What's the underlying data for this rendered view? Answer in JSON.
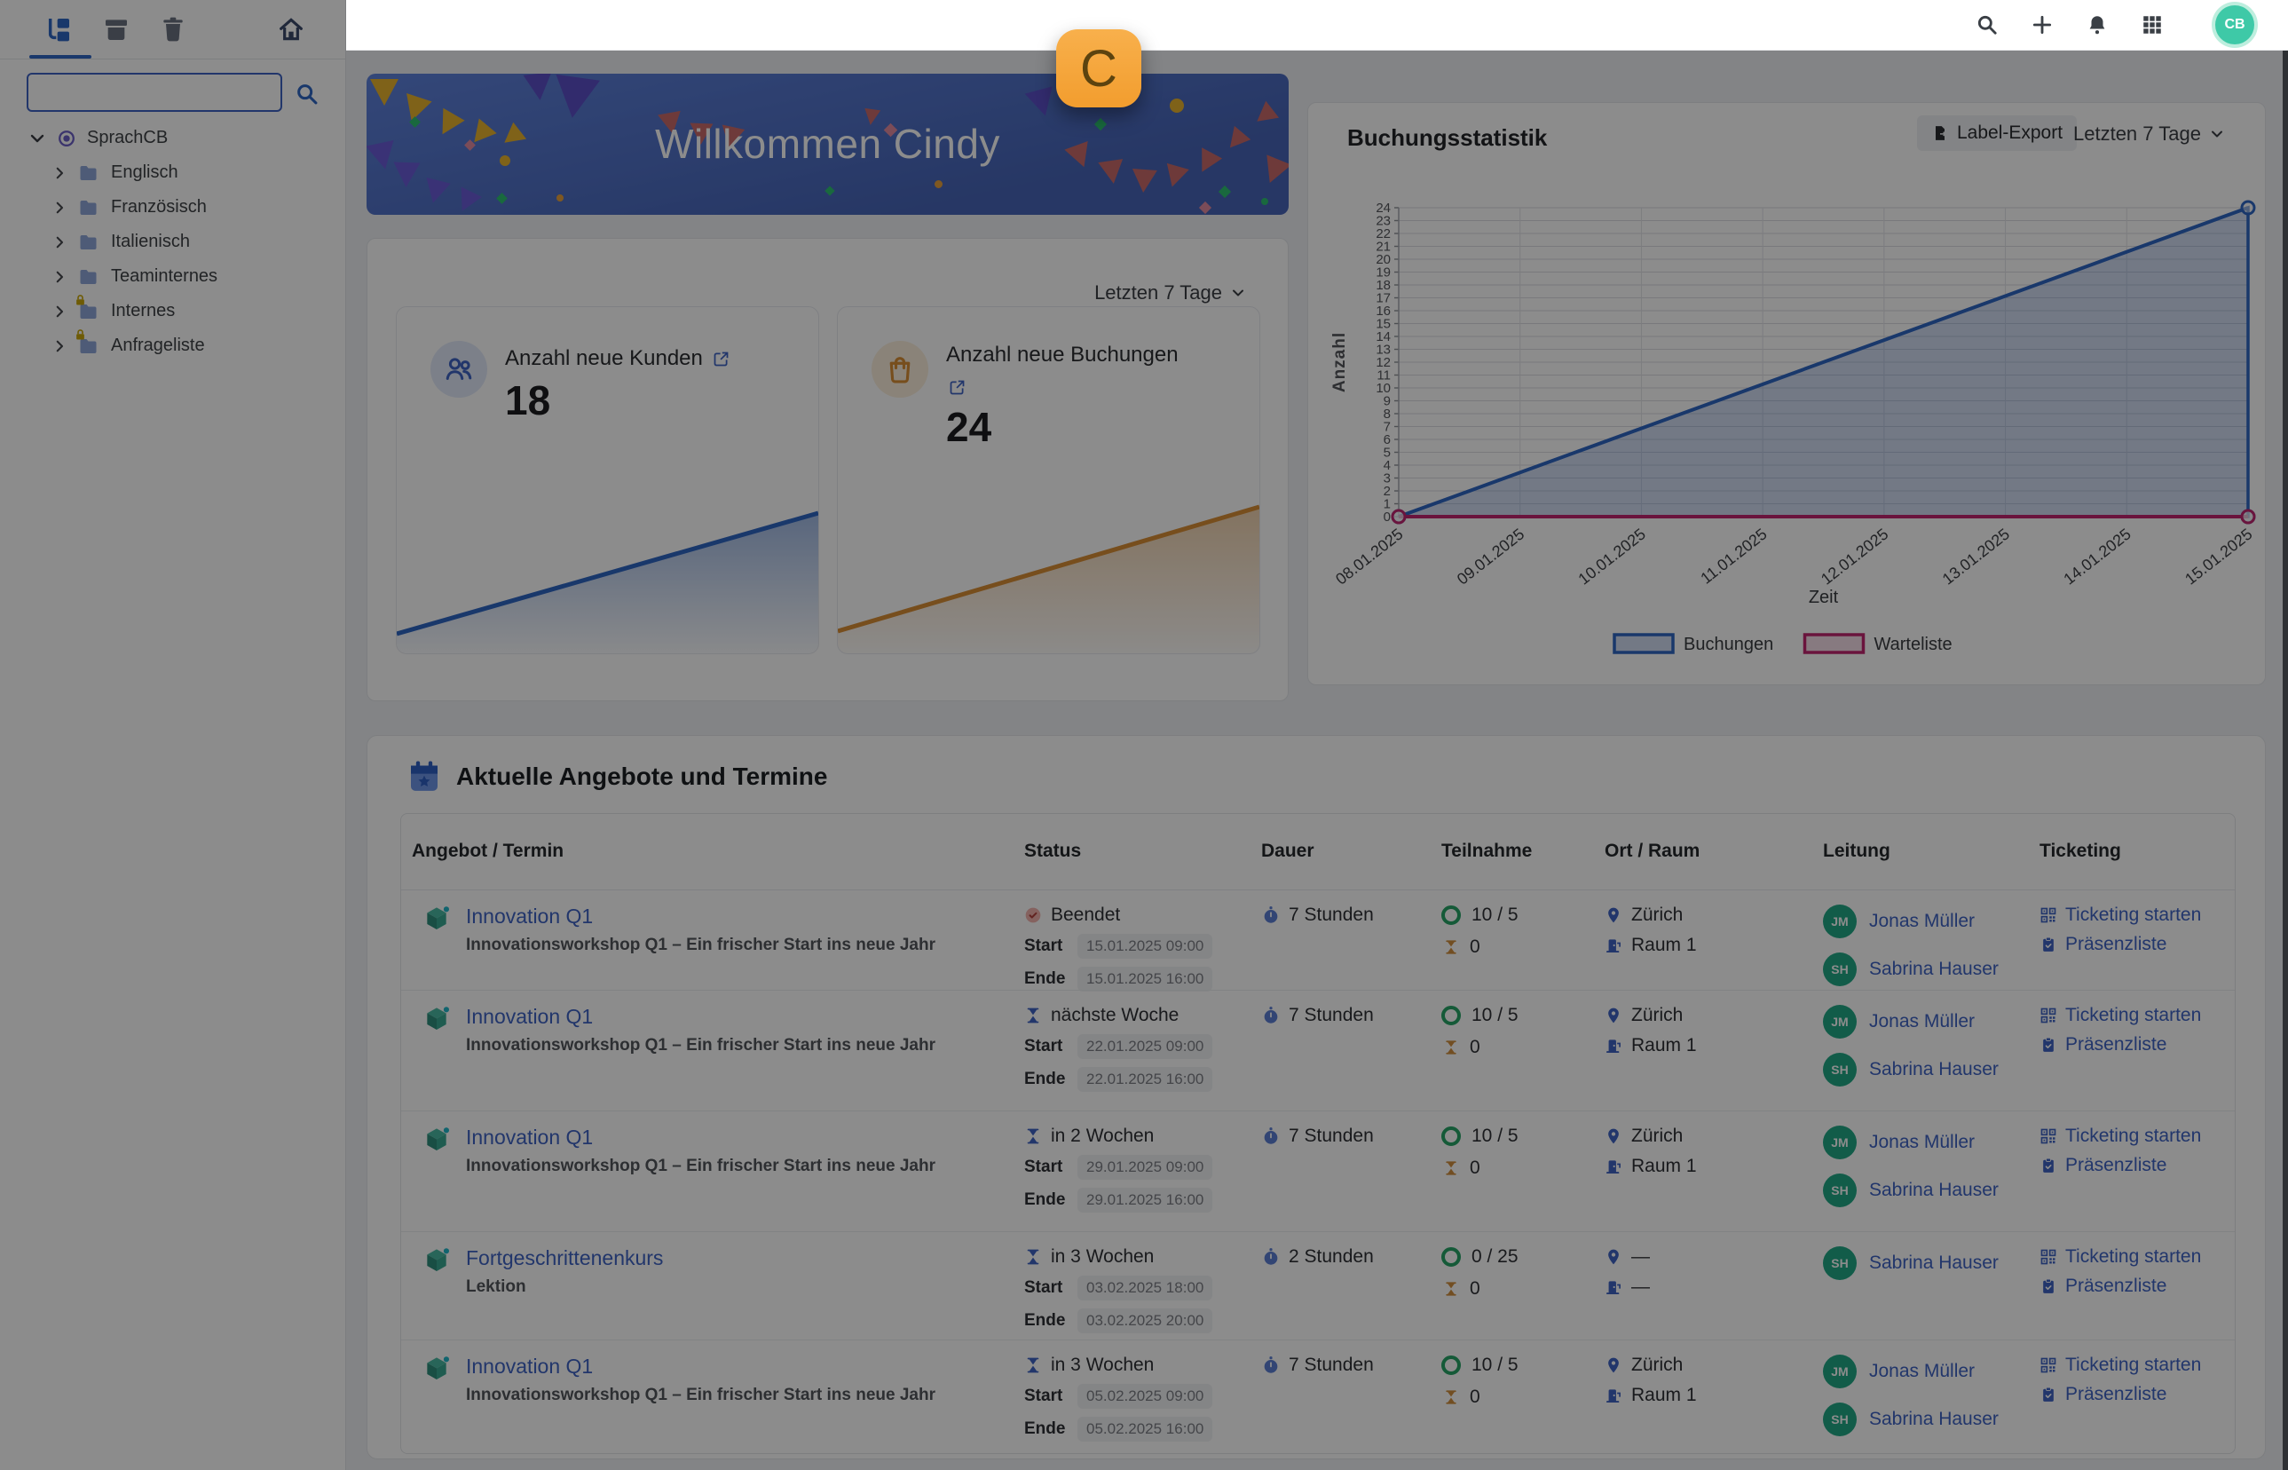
{
  "annotation": {
    "label": "C",
    "color": "#F2A43D"
  },
  "topbar": {
    "icons": [
      "search",
      "add",
      "notifications",
      "apps"
    ],
    "avatar_initials": "CB"
  },
  "sidebar": {
    "toolbar_icons": [
      "tree-view",
      "archive",
      "trash",
      "home"
    ],
    "search": {
      "value": "",
      "placeholder": ""
    },
    "tree": {
      "root_label": "SprachCB",
      "items": [
        {
          "label": "Englisch",
          "locked": false
        },
        {
          "label": "Französisch",
          "locked": false
        },
        {
          "label": "Italienisch",
          "locked": false
        },
        {
          "label": "Teaminternes",
          "locked": false
        },
        {
          "label": "Internes",
          "locked": true
        },
        {
          "label": "Anfrageliste",
          "locked": true
        }
      ]
    }
  },
  "welcome": {
    "title": "Willkommen Cindy"
  },
  "stats": {
    "period_label": "Letzten 7 Tage",
    "cards": [
      {
        "label": "Anzahl neue Kunden",
        "value": "18",
        "accent": "#2F66C4",
        "icon": "users"
      },
      {
        "label": "Anzahl neue Buchungen",
        "value": "24",
        "accent": "#D98E35",
        "icon": "shopping-bag"
      }
    ]
  },
  "chart_panel": {
    "title": "Buchungsstatistik",
    "export_label": "Label-Export",
    "period_label": "Letzten 7 Tage"
  },
  "chart_data": {
    "type": "line",
    "x": [
      "08.01.2025",
      "09.01.2025",
      "10.01.2025",
      "11.01.2025",
      "12.01.2025",
      "13.01.2025",
      "14.01.2025",
      "15.01.2025"
    ],
    "xlabel": "Zeit",
    "ylabel": "Anzahl",
    "ylim": [
      0,
      24
    ],
    "ytick_step": 1,
    "grid": true,
    "legend_position": "bottom",
    "series": [
      {
        "name": "Buchungen",
        "color": "#2F66C4",
        "fill": true,
        "fill_color": "rgba(47,102,196,0.22)",
        "points": [
          [
            0,
            0
          ],
          [
            7,
            24
          ]
        ]
      },
      {
        "name": "Warteliste",
        "color": "#C2256F",
        "fill": false,
        "fill_color": "rgba(194,37,111,0.15)",
        "points": [
          [
            0,
            0
          ],
          [
            7,
            0
          ]
        ]
      }
    ]
  },
  "offers": {
    "section_title": "Aktuelle Angebote und Termine",
    "columns": [
      "Angebot / Termin",
      "Status",
      "Dauer",
      "Teilnahme",
      "Ort / Raum",
      "Leitung",
      "Ticketing"
    ],
    "field_labels": {
      "start": "Start",
      "end": "Ende"
    },
    "rows": [
      {
        "title": "Innovation Q1",
        "subtitle": "Innovationsworkshop Q1 – Ein frischer Start ins neue Jahr",
        "status": {
          "kind": "done",
          "label": "Beendet"
        },
        "start": "15.01.2025 09:00",
        "end": "15.01.2025 16:00",
        "duration": "7 Stunden",
        "participants": "10 / 5",
        "waitlist": "0",
        "city": "Zürich",
        "room": "Raum 1",
        "leaders": [
          {
            "initials": "JM",
            "name": "Jonas Müller"
          },
          {
            "initials": "SH",
            "name": "Sabrina Hauser"
          }
        ],
        "links": [
          "Ticketing starten",
          "Präsenzliste"
        ]
      },
      {
        "title": "Innovation Q1",
        "subtitle": "Innovationsworkshop Q1 – Ein frischer Start ins neue Jahr",
        "status": {
          "kind": "upcoming",
          "label": "nächste Woche"
        },
        "start": "22.01.2025 09:00",
        "end": "22.01.2025 16:00",
        "duration": "7 Stunden",
        "participants": "10 / 5",
        "waitlist": "0",
        "city": "Zürich",
        "room": "Raum 1",
        "leaders": [
          {
            "initials": "JM",
            "name": "Jonas Müller"
          },
          {
            "initials": "SH",
            "name": "Sabrina Hauser"
          }
        ],
        "links": [
          "Ticketing starten",
          "Präsenzliste"
        ]
      },
      {
        "title": "Innovation Q1",
        "subtitle": "Innovationsworkshop Q1 – Ein frischer Start ins neue Jahr",
        "status": {
          "kind": "upcoming",
          "label": "in 2 Wochen"
        },
        "start": "29.01.2025 09:00",
        "end": "29.01.2025 16:00",
        "duration": "7 Stunden",
        "participants": "10 / 5",
        "waitlist": "0",
        "city": "Zürich",
        "room": "Raum 1",
        "leaders": [
          {
            "initials": "JM",
            "name": "Jonas Müller"
          },
          {
            "initials": "SH",
            "name": "Sabrina Hauser"
          }
        ],
        "links": [
          "Ticketing starten",
          "Präsenzliste"
        ]
      },
      {
        "title": "Fortgeschrittenenkurs",
        "subtitle": "Lektion",
        "status": {
          "kind": "upcoming",
          "label": "in 3 Wochen"
        },
        "start": "03.02.2025 18:00",
        "end": "03.02.2025 20:00",
        "duration": "2 Stunden",
        "participants": "0 / 25",
        "waitlist": "0",
        "city": "—",
        "room": "—",
        "leaders": [
          {
            "initials": "SH",
            "name": "Sabrina Hauser"
          }
        ],
        "links": [
          "Ticketing starten",
          "Präsenzliste"
        ]
      },
      {
        "title": "Innovation Q1",
        "subtitle": "Innovationsworkshop Q1 – Ein frischer Start ins neue Jahr",
        "status": {
          "kind": "upcoming",
          "label": "in 3 Wochen"
        },
        "start": "05.02.2025 09:00",
        "end": "05.02.2025 16:00",
        "duration": "7 Stunden",
        "participants": "10 / 5",
        "waitlist": "0",
        "city": "Zürich",
        "room": "Raum 1",
        "leaders": [
          {
            "initials": "JM",
            "name": "Jonas Müller"
          },
          {
            "initials": "SH",
            "name": "Sabrina Hauser"
          }
        ],
        "links": [
          "Ticketing starten",
          "Präsenzliste"
        ]
      }
    ]
  }
}
